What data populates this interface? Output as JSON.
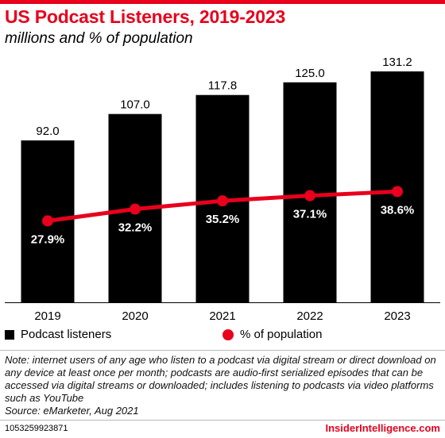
{
  "title": "US Podcast Listeners, 2019-2023",
  "subtitle": "millions and % of population",
  "chart_data": {
    "type": "bar",
    "categories": [
      "2019",
      "2020",
      "2021",
      "2022",
      "2023"
    ],
    "series": [
      {
        "name": "Podcast listeners",
        "type": "bar",
        "values": [
          92.0,
          107.0,
          117.8,
          125.0,
          131.2
        ],
        "labels": [
          "92.0",
          "107.0",
          "117.8",
          "125.0",
          "131.2"
        ]
      },
      {
        "name": "% of population",
        "type": "line",
        "values": [
          27.9,
          32.2,
          35.2,
          37.1,
          38.6
        ],
        "labels": [
          "27.9%",
          "32.2%",
          "35.2%",
          "37.1%",
          "38.6%"
        ]
      }
    ],
    "colors": {
      "bars": "#000000",
      "line": "#e8001c"
    }
  },
  "legend": {
    "bars": "Podcast listeners",
    "line": "% of population"
  },
  "note": "Note: internet users of any age who listen to a podcast via digital stream or direct download on any device at least once per month; podcasts are audio-first serialized episodes that can be accessed via digital streams or downloaded; includes listening to podcasts via video platforms such as YouTube",
  "source": "Source: eMarketer, Aug 2021",
  "footer": {
    "id": "1053259923871",
    "brand": "InsiderIntelligence.com"
  }
}
